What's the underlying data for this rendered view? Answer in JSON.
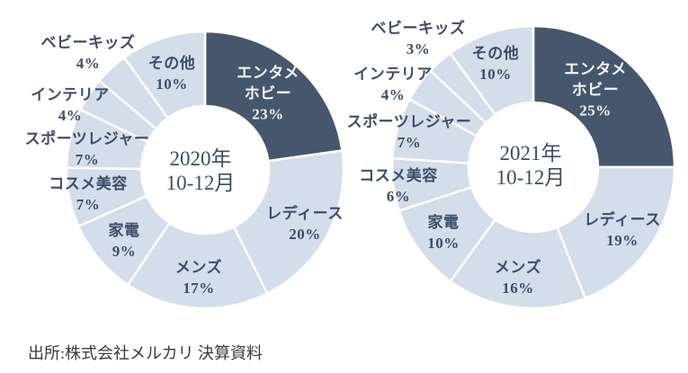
{
  "source_text": "出所:株式会社メルカリ 決算資料",
  "palette": {
    "highlight": "#46566C",
    "base": "#D4DDEA",
    "label_text": "#3D4D68",
    "label_text_on_dark": "#F4F7FB",
    "divider": "#FFFFFF"
  },
  "chart_data": [
    {
      "type": "pie",
      "subtype": "donut",
      "title": "2020年10-12月",
      "center_line1": "2020年",
      "center_line2": "10-12月",
      "unit": "%",
      "start_angle": "top",
      "direction": "clockwise",
      "legend": "none",
      "segments": [
        {
          "label": "エンタメホビー",
          "value": 23,
          "display": "23%",
          "color": "#46566C"
        },
        {
          "label": "レディース",
          "value": 20,
          "display": "20%",
          "color": "#D4DDEA"
        },
        {
          "label": "メンズ",
          "value": 17,
          "display": "17%",
          "color": "#D4DDEA"
        },
        {
          "label": "家電",
          "value": 9,
          "display": "9%",
          "color": "#D4DDEA"
        },
        {
          "label": "コスメ美容",
          "value": 7,
          "display": "7%",
          "color": "#D4DDEA"
        },
        {
          "label": "スポーツレジャー",
          "value": 7,
          "display": "7%",
          "color": "#D4DDEA"
        },
        {
          "label": "インテリア",
          "value": 4,
          "display": "4%",
          "color": "#D4DDEA"
        },
        {
          "label": "ベビーキッズ",
          "value": 4,
          "display": "4%",
          "color": "#D4DDEA"
        },
        {
          "label": "その他",
          "value": 10,
          "display": "10%",
          "color": "#D4DDEA"
        }
      ]
    },
    {
      "type": "pie",
      "subtype": "donut",
      "title": "2021年10-12月",
      "center_line1": "2021年",
      "center_line2": "10-12月",
      "unit": "%",
      "start_angle": "top",
      "direction": "clockwise",
      "legend": "none",
      "segments": [
        {
          "label": "エンタメホビー",
          "value": 25,
          "display": "25%",
          "color": "#46566C"
        },
        {
          "label": "レディース",
          "value": 19,
          "display": "19%",
          "color": "#D4DDEA"
        },
        {
          "label": "メンズ",
          "value": 16,
          "display": "16%",
          "color": "#D4DDEA"
        },
        {
          "label": "家電",
          "value": 10,
          "display": "10%",
          "color": "#D4DDEA"
        },
        {
          "label": "コスメ美容",
          "value": 6,
          "display": "6%",
          "color": "#D4DDEA"
        },
        {
          "label": "スポーツレジャー",
          "value": 7,
          "display": "7%",
          "color": "#D4DDEA"
        },
        {
          "label": "インテリア",
          "value": 4,
          "display": "4%",
          "color": "#D4DDEA"
        },
        {
          "label": "ベビーキッズ",
          "value": 3,
          "display": "3%",
          "color": "#D4DDEA"
        },
        {
          "label": "その他",
          "value": 10,
          "display": "10%",
          "color": "#D4DDEA"
        }
      ]
    }
  ]
}
